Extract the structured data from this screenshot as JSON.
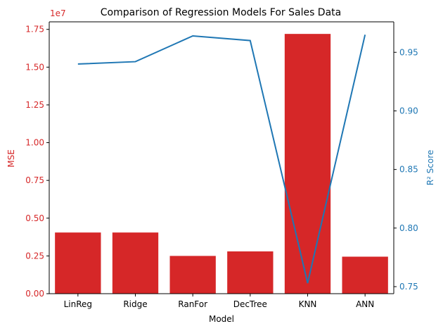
{
  "chart_data": {
    "type": "bar+line",
    "title": "Comparison of Regression Models For Sales Data",
    "xlabel": "Model",
    "categories": [
      "LinReg",
      "Ridge",
      "RanFor",
      "DecTree",
      "KNN",
      "ANN"
    ],
    "left_axis": {
      "label": "MSE",
      "color": "#d62728",
      "multiplier_label": "1e7",
      "ylim": [
        0,
        1.8
      ],
      "ticks": [
        "0.00",
        "0.25",
        "0.50",
        "0.75",
        "1.00",
        "1.25",
        "1.50",
        "1.75"
      ]
    },
    "right_axis": {
      "label": "R² Score",
      "color": "#1f77b4",
      "ylim": [
        0.744,
        0.976
      ],
      "ticks": [
        "0.75",
        "0.80",
        "0.85",
        "0.90",
        "0.95"
      ]
    },
    "series": [
      {
        "axis": "left",
        "kind": "bar",
        "color": "#d62728",
        "values": [
          4.05,
          4.05,
          2.5,
          2.8,
          17.2,
          2.45
        ]
      },
      {
        "axis": "right",
        "kind": "line",
        "color": "#1f77b4",
        "values": [
          0.94,
          0.942,
          0.964,
          0.96,
          0.753,
          0.965
        ]
      }
    ]
  }
}
